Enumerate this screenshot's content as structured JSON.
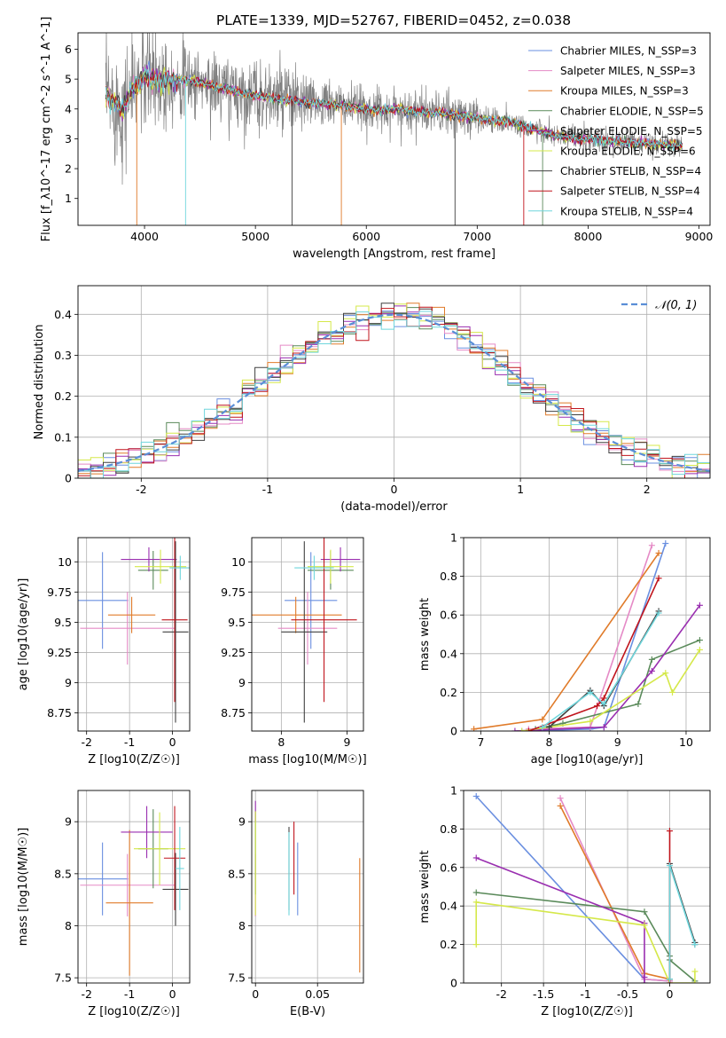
{
  "figure_title": "PLATE=1339, MJD=52767, FIBERID=0452, z=0.038",
  "model_colors": [
    "#6a8fe0",
    "#e58ac6",
    "#e07b2a",
    "#5a8a5a",
    "#9a2fb0",
    "#d5e84a",
    "#404040",
    "#c0141c",
    "#6fd6dc"
  ],
  "chart_data": [
    {
      "id": "spectrum",
      "type": "line",
      "xlabel": "wavelength [Angstrom, rest frame]",
      "ylabel": "Flux [f_λ10^-17 erg cm^-2 s^-1 A^-1]",
      "xlim": [
        3400,
        9100
      ],
      "ylim": [
        0.1,
        6.55
      ],
      "xticks": [
        4000,
        5000,
        6000,
        7000,
        8000,
        9000
      ],
      "yticks": [
        1,
        2,
        3,
        4,
        5,
        6
      ],
      "grid": false,
      "legend_position": "top-right",
      "data_x_range": [
        3650,
        8850
      ],
      "data_color": "#808080",
      "continuum_anchors": {
        "x": [
          3650,
          3700,
          3800,
          3900,
          4000,
          4100,
          4300,
          4500,
          4700,
          4900,
          5100,
          5300,
          5500,
          5700,
          5900,
          6100,
          6300,
          6500,
          6700,
          6900,
          7100,
          7300,
          7500,
          7700,
          7900,
          8100,
          8300,
          8500,
          8700,
          8850
        ],
        "y": [
          4.5,
          4.3,
          4.0,
          4.7,
          5.1,
          5.0,
          5.0,
          4.9,
          4.7,
          4.5,
          4.4,
          4.3,
          4.2,
          4.15,
          4.05,
          3.95,
          4.0,
          3.9,
          3.85,
          3.75,
          3.65,
          3.55,
          3.35,
          3.1,
          3.0,
          2.95,
          2.9,
          2.85,
          2.8,
          2.75
        ]
      },
      "series": [
        {
          "name": "Chabrier MILES, N_SSP=3"
        },
        {
          "name": "Salpeter MILES, N_SSP=3"
        },
        {
          "name": "Kroupa MILES, N_SSP=3"
        },
        {
          "name": "Chabrier ELODIE, N_SSP=5"
        },
        {
          "name": "Salpeter ELODIE, N_SSP=5"
        },
        {
          "name": "Kroupa ELODIE, N_SSP=6"
        },
        {
          "name": "Chabrier STELIB, N_SSP=4"
        },
        {
          "name": "Salpeter STELIB, N_SSP=4"
        },
        {
          "name": "Kroupa STELIB, N_SSP=4"
        }
      ]
    },
    {
      "id": "residuals",
      "type": "line",
      "xlabel": "(data-model)/error",
      "ylabel": "Normed distribution",
      "xlim": [
        -2.5,
        2.5
      ],
      "ylim": [
        0.0,
        0.47
      ],
      "xticks": [
        -2,
        -1,
        0,
        1,
        2
      ],
      "yticks": [
        0.0,
        0.1,
        0.2,
        0.3,
        0.4
      ],
      "grid": true,
      "legend_position": "top-right",
      "gaussian_label": "𝒩(0, 1)",
      "gaussian_color": "#5a8ed6",
      "bin_width": 0.1
    },
    {
      "id": "age_vs_Z",
      "type": "scatter",
      "xlabel": "Z [log10(Z/Z☉)]",
      "ylabel": "age  [log10(age/yr)]",
      "xlim": [
        -2.2,
        0.4
      ],
      "ylim": [
        8.6,
        10.2
      ],
      "xticks": [
        -2,
        -1,
        0
      ],
      "yticks": [
        8.75,
        9.0,
        9.25,
        9.5,
        9.75,
        10.0
      ],
      "grid": true,
      "points": [
        {
          "x": -1.63,
          "y": 9.68,
          "xerr": 0.6,
          "yerr": 0.4,
          "c": 0
        },
        {
          "x": -1.05,
          "y": 9.45,
          "xerr": 1.1,
          "yerr": 0.3,
          "c": 1
        },
        {
          "x": -0.95,
          "y": 9.56,
          "xerr": 0.55,
          "yerr": 0.15,
          "c": 2
        },
        {
          "x": -0.45,
          "y": 9.93,
          "xerr": 0.35,
          "yerr": 0.16,
          "c": 3
        },
        {
          "x": -0.55,
          "y": 10.02,
          "xerr": 0.65,
          "yerr": 0.1,
          "c": 4
        },
        {
          "x": -0.28,
          "y": 9.96,
          "xerr": 0.6,
          "yerr": 0.14,
          "c": 5
        },
        {
          "x": 0.07,
          "y": 9.42,
          "xerr": 0.3,
          "yerr": 0.75,
          "c": 6
        },
        {
          "x": 0.05,
          "y": 9.52,
          "xerr": 0.3,
          "yerr": 0.68,
          "c": 7
        },
        {
          "x": 0.18,
          "y": 9.95,
          "xerr": 0.25,
          "yerr": 0.1,
          "c": 8
        }
      ]
    },
    {
      "id": "age_vs_mass",
      "type": "scatter",
      "xlabel": "mass [log10(M/M☉)]",
      "ylabel": "",
      "xlim": [
        7.55,
        9.25
      ],
      "ylim": [
        8.6,
        10.2
      ],
      "xticks": [
        8,
        9
      ],
      "yticks": [
        8.75,
        9.0,
        9.25,
        9.5,
        9.75,
        10.0
      ],
      "grid": true,
      "points": [
        {
          "x": 8.45,
          "y": 9.68,
          "xerr": 0.4,
          "yerr": 0.4,
          "c": 0
        },
        {
          "x": 8.4,
          "y": 9.45,
          "xerr": 0.45,
          "yerr": 0.3,
          "c": 1
        },
        {
          "x": 8.22,
          "y": 9.56,
          "xerr": 0.7,
          "yerr": 0.15,
          "c": 2
        },
        {
          "x": 8.75,
          "y": 9.93,
          "xerr": 0.35,
          "yerr": 0.16,
          "c": 3
        },
        {
          "x": 8.9,
          "y": 10.02,
          "xerr": 0.3,
          "yerr": 0.1,
          "c": 4
        },
        {
          "x": 8.75,
          "y": 9.96,
          "xerr": 0.35,
          "yerr": 0.14,
          "c": 5
        },
        {
          "x": 8.35,
          "y": 9.42,
          "xerr": 0.35,
          "yerr": 0.75,
          "c": 6
        },
        {
          "x": 8.65,
          "y": 9.52,
          "xerr": 0.5,
          "yerr": 0.68,
          "c": 7
        },
        {
          "x": 8.5,
          "y": 9.95,
          "xerr": 0.3,
          "yerr": 0.1,
          "c": 8
        }
      ]
    },
    {
      "id": "weight_vs_age",
      "type": "line",
      "xlabel": "age  [log10(age/yr)]",
      "ylabel": "mass weight",
      "xlim": [
        6.75,
        10.35
      ],
      "ylim": [
        0.0,
        1.0
      ],
      "xticks": [
        7,
        8,
        9,
        10
      ],
      "yticks": [
        0.0,
        0.2,
        0.4,
        0.6,
        0.8,
        1.0
      ],
      "grid": true,
      "series": [
        {
          "c": 0,
          "x": [
            7.6,
            8.6,
            8.8,
            9.7
          ],
          "y": [
            0.0,
            0.01,
            0.02,
            0.97
          ]
        },
        {
          "c": 1,
          "x": [
            7.7,
            8.6,
            9.5
          ],
          "y": [
            0.01,
            0.02,
            0.96
          ]
        },
        {
          "c": 2,
          "x": [
            6.9,
            7.9,
            9.6
          ],
          "y": [
            0.01,
            0.06,
            0.92
          ]
        },
        {
          "c": 3,
          "x": [
            7.8,
            8.2,
            9.3,
            9.5,
            10.2
          ],
          "y": [
            0.01,
            0.04,
            0.14,
            0.37,
            0.47
          ]
        },
        {
          "c": 4,
          "x": [
            7.5,
            8.8,
            9.5,
            10.2
          ],
          "y": [
            0.0,
            0.02,
            0.31,
            0.65
          ]
        },
        {
          "c": 5,
          "x": [
            7.6,
            8.6,
            9.7,
            9.8,
            10.2
          ],
          "y": [
            0.0,
            0.05,
            0.3,
            0.2,
            0.42
          ]
        },
        {
          "c": 6,
          "x": [
            8.0,
            8.6,
            8.8,
            9.6
          ],
          "y": [
            0.02,
            0.21,
            0.13,
            0.62
          ]
        },
        {
          "c": 7,
          "x": [
            7.7,
            8.7,
            8.8,
            9.6
          ],
          "y": [
            0.0,
            0.13,
            0.17,
            0.79
          ]
        },
        {
          "c": 8,
          "x": [
            7.9,
            8.6,
            8.8,
            9.6
          ],
          "y": [
            0.02,
            0.2,
            0.14,
            0.61
          ]
        }
      ]
    },
    {
      "id": "mass_vs_Z",
      "type": "scatter",
      "xlabel": "Z [log10(Z/Z☉)]",
      "ylabel": "mass [log10(M/M☉)]",
      "xlim": [
        -2.2,
        0.4
      ],
      "ylim": [
        7.45,
        9.3
      ],
      "xticks": [
        -2,
        -1,
        0
      ],
      "yticks": [
        7.5,
        8.0,
        8.5,
        9.0
      ],
      "grid": true,
      "points": [
        {
          "x": -1.63,
          "y": 8.45,
          "xerr": 0.6,
          "yerr": 0.35,
          "c": 0
        },
        {
          "x": -1.05,
          "y": 8.39,
          "xerr": 1.1,
          "yerr": 0.3,
          "c": 1
        },
        {
          "x": -1.0,
          "y": 8.22,
          "xerr": 0.55,
          "yerr": 0.7,
          "c": 2
        },
        {
          "x": -0.45,
          "y": 8.74,
          "xerr": 0.35,
          "yerr": 0.38,
          "c": 3
        },
        {
          "x": -0.6,
          "y": 8.9,
          "xerr": 0.6,
          "yerr": 0.25,
          "c": 4
        },
        {
          "x": -0.3,
          "y": 8.74,
          "xerr": 0.6,
          "yerr": 0.35,
          "c": 5
        },
        {
          "x": 0.07,
          "y": 8.35,
          "xerr": 0.3,
          "yerr": 0.35,
          "c": 6
        },
        {
          "x": 0.05,
          "y": 8.65,
          "xerr": 0.25,
          "yerr": 0.5,
          "c": 7
        },
        {
          "x": 0.17,
          "y": 8.55,
          "xerr": 0.1,
          "yerr": 0.4,
          "c": 8
        }
      ]
    },
    {
      "id": "mass_vs_EBV",
      "type": "scatter",
      "xlabel": "E(B-V)",
      "ylabel": "",
      "xlim": [
        -0.003,
        0.087
      ],
      "ylim": [
        7.45,
        9.3
      ],
      "xticks": [
        0.0,
        0.05
      ],
      "yticks": [
        7.5,
        8.0,
        8.5,
        9.0
      ],
      "grid": true,
      "points": [
        {
          "x": 0.034,
          "y": 8.45,
          "xerr": 0,
          "yerr": 0.35,
          "c": 0
        },
        {
          "x": 0.0,
          "y": 8.39,
          "xerr": 0,
          "yerr": 0.3,
          "c": 1
        },
        {
          "x": 0.084,
          "y": 8.1,
          "xerr": 0,
          "yerr": 0.55,
          "c": 2
        },
        {
          "x": 0.0,
          "y": 8.7,
          "xerr": 0,
          "yerr": 0.4,
          "c": 3
        },
        {
          "x": 0.0,
          "y": 9.1,
          "xerr": 0,
          "yerr": 0.1,
          "c": 4
        },
        {
          "x": 0.0,
          "y": 8.6,
          "xerr": 0,
          "yerr": 0.5,
          "c": 5
        },
        {
          "x": 0.027,
          "y": 8.55,
          "xerr": 0,
          "yerr": 0.4,
          "c": 6
        },
        {
          "x": 0.031,
          "y": 8.65,
          "xerr": 0,
          "yerr": 0.35,
          "c": 7
        },
        {
          "x": 0.027,
          "y": 8.5,
          "xerr": 0,
          "yerr": 0.4,
          "c": 8
        }
      ]
    },
    {
      "id": "weight_vs_Z",
      "type": "line",
      "xlabel": "Z [log10(Z/Z☉)]",
      "ylabel": "mass weight",
      "xlim": [
        -2.45,
        0.48
      ],
      "ylim": [
        0.0,
        1.0
      ],
      "xticks": [
        -2.0,
        -1.5,
        -1.0,
        -0.5,
        0.0
      ],
      "yticks": [
        0.0,
        0.2,
        0.4,
        0.6,
        0.8,
        1.0
      ],
      "grid": true,
      "series": [
        {
          "c": 0,
          "x": [
            -2.3,
            -0.3,
            0.0
          ],
          "y": [
            0.97,
            0.02,
            0.01
          ]
        },
        {
          "c": 1,
          "x": [
            -1.3,
            -0.3,
            0.0
          ],
          "y": [
            0.96,
            0.02,
            0.01
          ]
        },
        {
          "c": 2,
          "x": [
            -1.3,
            -0.3,
            0.0
          ],
          "y": [
            0.92,
            0.05,
            0.02
          ]
        },
        {
          "c": 3,
          "x": [
            -2.3,
            -0.3,
            0.0,
            0.0,
            0.3
          ],
          "y": [
            0.47,
            0.37,
            0.14,
            0.12,
            0.01
          ]
        },
        {
          "c": 4,
          "x": [
            -2.3,
            -0.3,
            -0.3,
            -0.3
          ],
          "y": [
            0.65,
            0.31,
            0.03,
            0.0
          ]
        },
        {
          "c": 5,
          "x": [
            -2.3,
            -2.3,
            -0.3,
            0.0,
            0.3,
            0.3
          ],
          "y": [
            0.2,
            0.42,
            0.3,
            0.0,
            0.0,
            0.06
          ]
        },
        {
          "c": 6,
          "x": [
            0.0,
            0.0,
            0.3,
            0.3
          ],
          "y": [
            0.02,
            0.62,
            0.21,
            0.2
          ]
        },
        {
          "c": 7,
          "x": [
            0.0,
            0.0
          ],
          "y": [
            0.0,
            0.79
          ]
        },
        {
          "c": 8,
          "x": [
            0.0,
            0.0,
            0.3
          ],
          "y": [
            0.02,
            0.61,
            0.2
          ]
        }
      ]
    }
  ]
}
